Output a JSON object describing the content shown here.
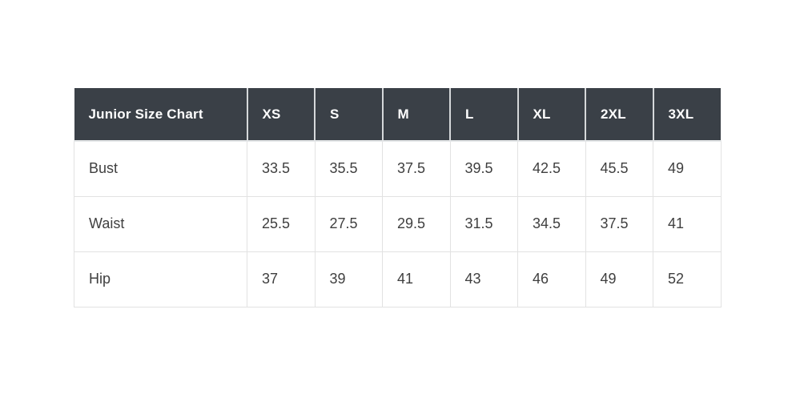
{
  "table": {
    "header": [
      "Junior Size Chart",
      "XS",
      "S",
      "M",
      "L",
      "XL",
      "2XL",
      "3XL"
    ],
    "rows": [
      {
        "label": "Bust",
        "values": [
          "33.5",
          "35.5",
          "37.5",
          "39.5",
          "42.5",
          "45.5",
          "49"
        ]
      },
      {
        "label": "Waist",
        "values": [
          "25.5",
          "27.5",
          "29.5",
          "31.5",
          "34.5",
          "37.5",
          "41"
        ]
      },
      {
        "label": "Hip",
        "values": [
          "37",
          "39",
          "41",
          "43",
          "46",
          "49",
          "52"
        ]
      }
    ]
  },
  "chart_data": {
    "type": "table",
    "title": "Junior Size Chart",
    "columns": [
      "XS",
      "S",
      "M",
      "L",
      "XL",
      "2XL",
      "3XL"
    ],
    "row_labels": [
      "Bust",
      "Waist",
      "Hip"
    ],
    "rows": [
      [
        33.5,
        35.5,
        37.5,
        39.5,
        42.5,
        45.5,
        49
      ],
      [
        25.5,
        27.5,
        29.5,
        31.5,
        34.5,
        37.5,
        41
      ],
      [
        37,
        39,
        41,
        43,
        46,
        49,
        52
      ]
    ]
  },
  "colors": {
    "header_bg": "#3a4047",
    "header_text": "#ffffff",
    "header_separator": "#d5d8da",
    "body_text": "#3f3f3f",
    "body_border": "#e2e2e2",
    "page_bg": "#ffffff"
  }
}
